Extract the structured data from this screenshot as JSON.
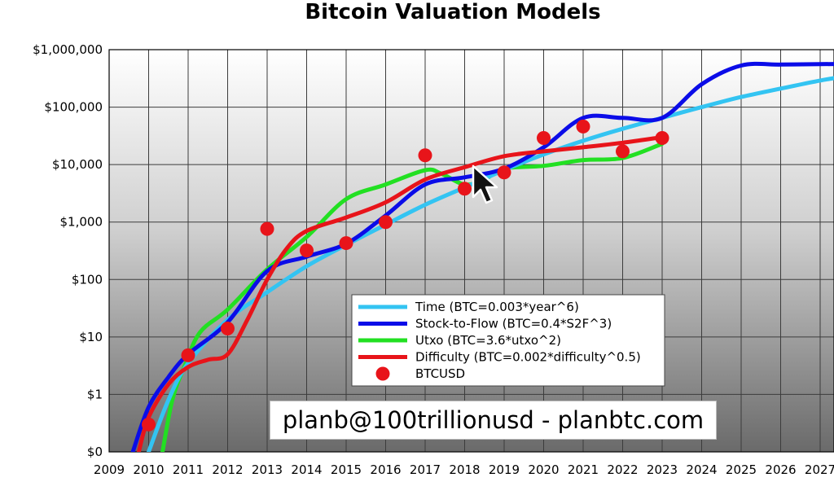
{
  "chart_data": {
    "type": "line",
    "title": "Bitcoin Valuation Models",
    "xlabel": "",
    "ylabel": "",
    "yscale": "log",
    "x_tick_labels": [
      "2009",
      "2010",
      "2011",
      "2012",
      "2013",
      "2014",
      "2015",
      "2016",
      "2017",
      "2018",
      "2019",
      "2020",
      "2021",
      "2022",
      "2023",
      "2024",
      "2025",
      "2026",
      "2027"
    ],
    "y_tick_labels": [
      "$0",
      "$1",
      "$10",
      "$100",
      "$1,000",
      "$10,000",
      "$100,000",
      "$1,000,000"
    ],
    "y_tick_values": [
      0.1,
      1,
      10,
      100,
      1000,
      10000,
      100000,
      1000000
    ],
    "xlim": [
      2009,
      2028.1
    ],
    "ylim": [
      0.1,
      1000000
    ],
    "grid": true,
    "legend_position": "center",
    "series": [
      {
        "name": "Time (BTC=0.003*year^6)",
        "color": "#33c4f2",
        "x": [
          2010.0,
          2010.5,
          2011,
          2012,
          2013,
          2014,
          2015,
          2016,
          2017,
          2018,
          2019,
          2020,
          2021,
          2022,
          2023,
          2024,
          2025,
          2026,
          2027,
          2028.1
        ],
        "y": [
          0.1,
          0.8,
          3.5,
          20,
          60,
          170,
          400,
          900,
          2000,
          4000,
          8000,
          15000,
          26000,
          42000,
          65000,
          100000,
          150000,
          210000,
          290000,
          390000
        ]
      },
      {
        "name": "Stock-to-Flow (BTC=0.4*S2F^3)",
        "color": "#0b0ce8",
        "x": [
          2009.6,
          2010.0,
          2010.5,
          2011,
          2012,
          2013,
          2014,
          2015,
          2016,
          2017,
          2018,
          2019,
          2020,
          2021,
          2022,
          2023,
          2024,
          2025,
          2026,
          2027,
          2028.1
        ],
        "y": [
          0.1,
          0.6,
          2,
          5,
          18,
          140,
          250,
          420,
          1300,
          4500,
          6000,
          8500,
          20000,
          65000,
          65000,
          65000,
          250000,
          530000,
          550000,
          560000,
          570000
        ]
      },
      {
        "name": "Utxo (BTC=3.6*utxo^2)",
        "color": "#22e022",
        "x": [
          2010.35,
          2010.6,
          2010.9,
          2011.3,
          2012,
          2013,
          2014,
          2015,
          2016,
          2017,
          2017.4,
          2018,
          2018.5,
          2019,
          2020,
          2021,
          2022,
          2023
        ],
        "y": [
          0.1,
          0.8,
          3,
          12,
          30,
          150,
          550,
          2500,
          4500,
          8000,
          7000,
          4500,
          5500,
          8500,
          9500,
          12000,
          13000,
          23000
        ]
      },
      {
        "name": "Difficulty (BTC=0.002*difficulty^0.5)",
        "color": "#e8141a",
        "x": [
          2009.75,
          2010.0,
          2010.5,
          2011,
          2011.5,
          2012,
          2012.5,
          2013,
          2013.5,
          2014,
          2015,
          2016,
          2017,
          2018,
          2019,
          2020,
          2021,
          2022,
          2023
        ],
        "y": [
          0.1,
          0.4,
          1.5,
          3,
          4,
          5,
          20,
          100,
          350,
          700,
          1200,
          2200,
          5500,
          9000,
          14000,
          17000,
          20000,
          24000,
          30000
        ]
      },
      {
        "name": "BTCUSD",
        "color": "#e8141a",
        "marker": "circle",
        "x": [
          2010.0,
          2011.0,
          2012.0,
          2013.0,
          2014.0,
          2015.0,
          2016.0,
          2017.0,
          2018.0,
          2019.0,
          2020.0,
          2021.0,
          2022.0,
          2023.0
        ],
        "y": [
          0.3,
          4.8,
          14,
          760,
          320,
          430,
          1000,
          14500,
          3800,
          7300,
          29000,
          46000,
          17000,
          29000
        ]
      }
    ]
  },
  "watermark_text": "planb@100trillionusd  -  planbtc.com"
}
